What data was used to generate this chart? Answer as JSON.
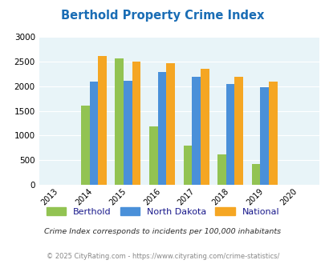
{
  "title": "Berthold Property Crime Index",
  "years": [
    2013,
    2014,
    2015,
    2016,
    2017,
    2018,
    2019,
    2020
  ],
  "categories": [
    "Berthold",
    "North Dakota",
    "National"
  ],
  "values": {
    "Berthold": [
      null,
      1610,
      2560,
      1185,
      790,
      615,
      415,
      null
    ],
    "North Dakota": [
      null,
      2100,
      2110,
      2290,
      2190,
      2050,
      1975,
      null
    ],
    "National": [
      null,
      2610,
      2500,
      2460,
      2360,
      2190,
      2090,
      null
    ]
  },
  "colors": {
    "Berthold": "#92c352",
    "North Dakota": "#4a90d9",
    "National": "#f5a623"
  },
  "ylim": [
    0,
    3000
  ],
  "yticks": [
    0,
    500,
    1000,
    1500,
    2000,
    2500,
    3000
  ],
  "bg_color": "#e8f4f8",
  "title_color": "#1a6db5",
  "subtitle": "Crime Index corresponds to incidents per 100,000 inhabitants",
  "footer": "© 2025 CityRating.com - https://www.cityrating.com/crime-statistics/",
  "bar_width": 0.25,
  "subtitle_color": "#2c2c2c",
  "footer_color": "#888888",
  "legend_text_color": "#1a1a8c"
}
